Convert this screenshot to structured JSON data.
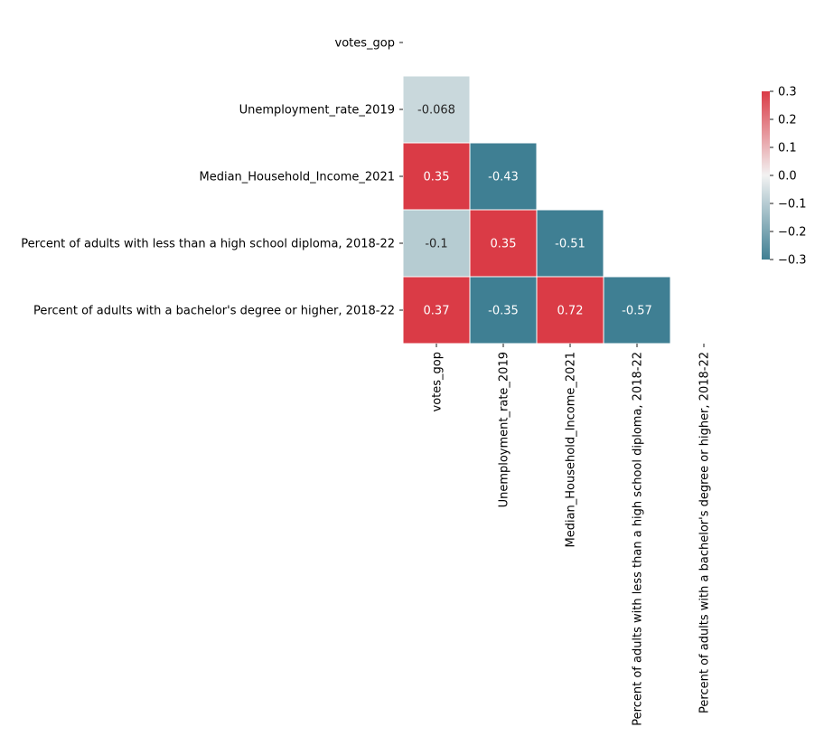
{
  "chart_data": {
    "type": "heatmap",
    "title": "",
    "variables": [
      "votes_gop",
      "Unemployment_rate_2019",
      "Median_Household_Income_2021",
      "Percent of adults with less than a high school diploma, 2018-22",
      "Percent of adults with a bachelor's degree or higher, 2018-22"
    ],
    "mask": "upper triangle incl. diagonal",
    "cells": [
      {
        "row": 1,
        "col": 0,
        "value": -0.068,
        "label": "-0.068"
      },
      {
        "row": 2,
        "col": 0,
        "value": 0.35,
        "label": "0.35"
      },
      {
        "row": 2,
        "col": 1,
        "value": -0.43,
        "label": "-0.43"
      },
      {
        "row": 3,
        "col": 0,
        "value": -0.1,
        "label": "-0.1"
      },
      {
        "row": 3,
        "col": 1,
        "value": 0.35,
        "label": "0.35"
      },
      {
        "row": 3,
        "col": 2,
        "value": -0.51,
        "label": "-0.51"
      },
      {
        "row": 4,
        "col": 0,
        "value": 0.37,
        "label": "0.37"
      },
      {
        "row": 4,
        "col": 1,
        "value": -0.35,
        "label": "-0.35"
      },
      {
        "row": 4,
        "col": 2,
        "value": 0.72,
        "label": "0.72"
      },
      {
        "row": 4,
        "col": 3,
        "value": -0.57,
        "label": "-0.57"
      }
    ],
    "colorbar": {
      "vmin": -0.3,
      "vmax": 0.3,
      "ticks": [
        0.3,
        0.2,
        0.1,
        0.0,
        -0.1,
        -0.2,
        -0.3
      ],
      "tick_labels": [
        "0.3",
        "0.2",
        "0.1",
        "0.0",
        "−0.1",
        "−0.2",
        "−0.3"
      ]
    },
    "colors": {
      "negative": "#3f7f93",
      "center": "#f2f2f2",
      "positive": "#da3b46"
    }
  }
}
